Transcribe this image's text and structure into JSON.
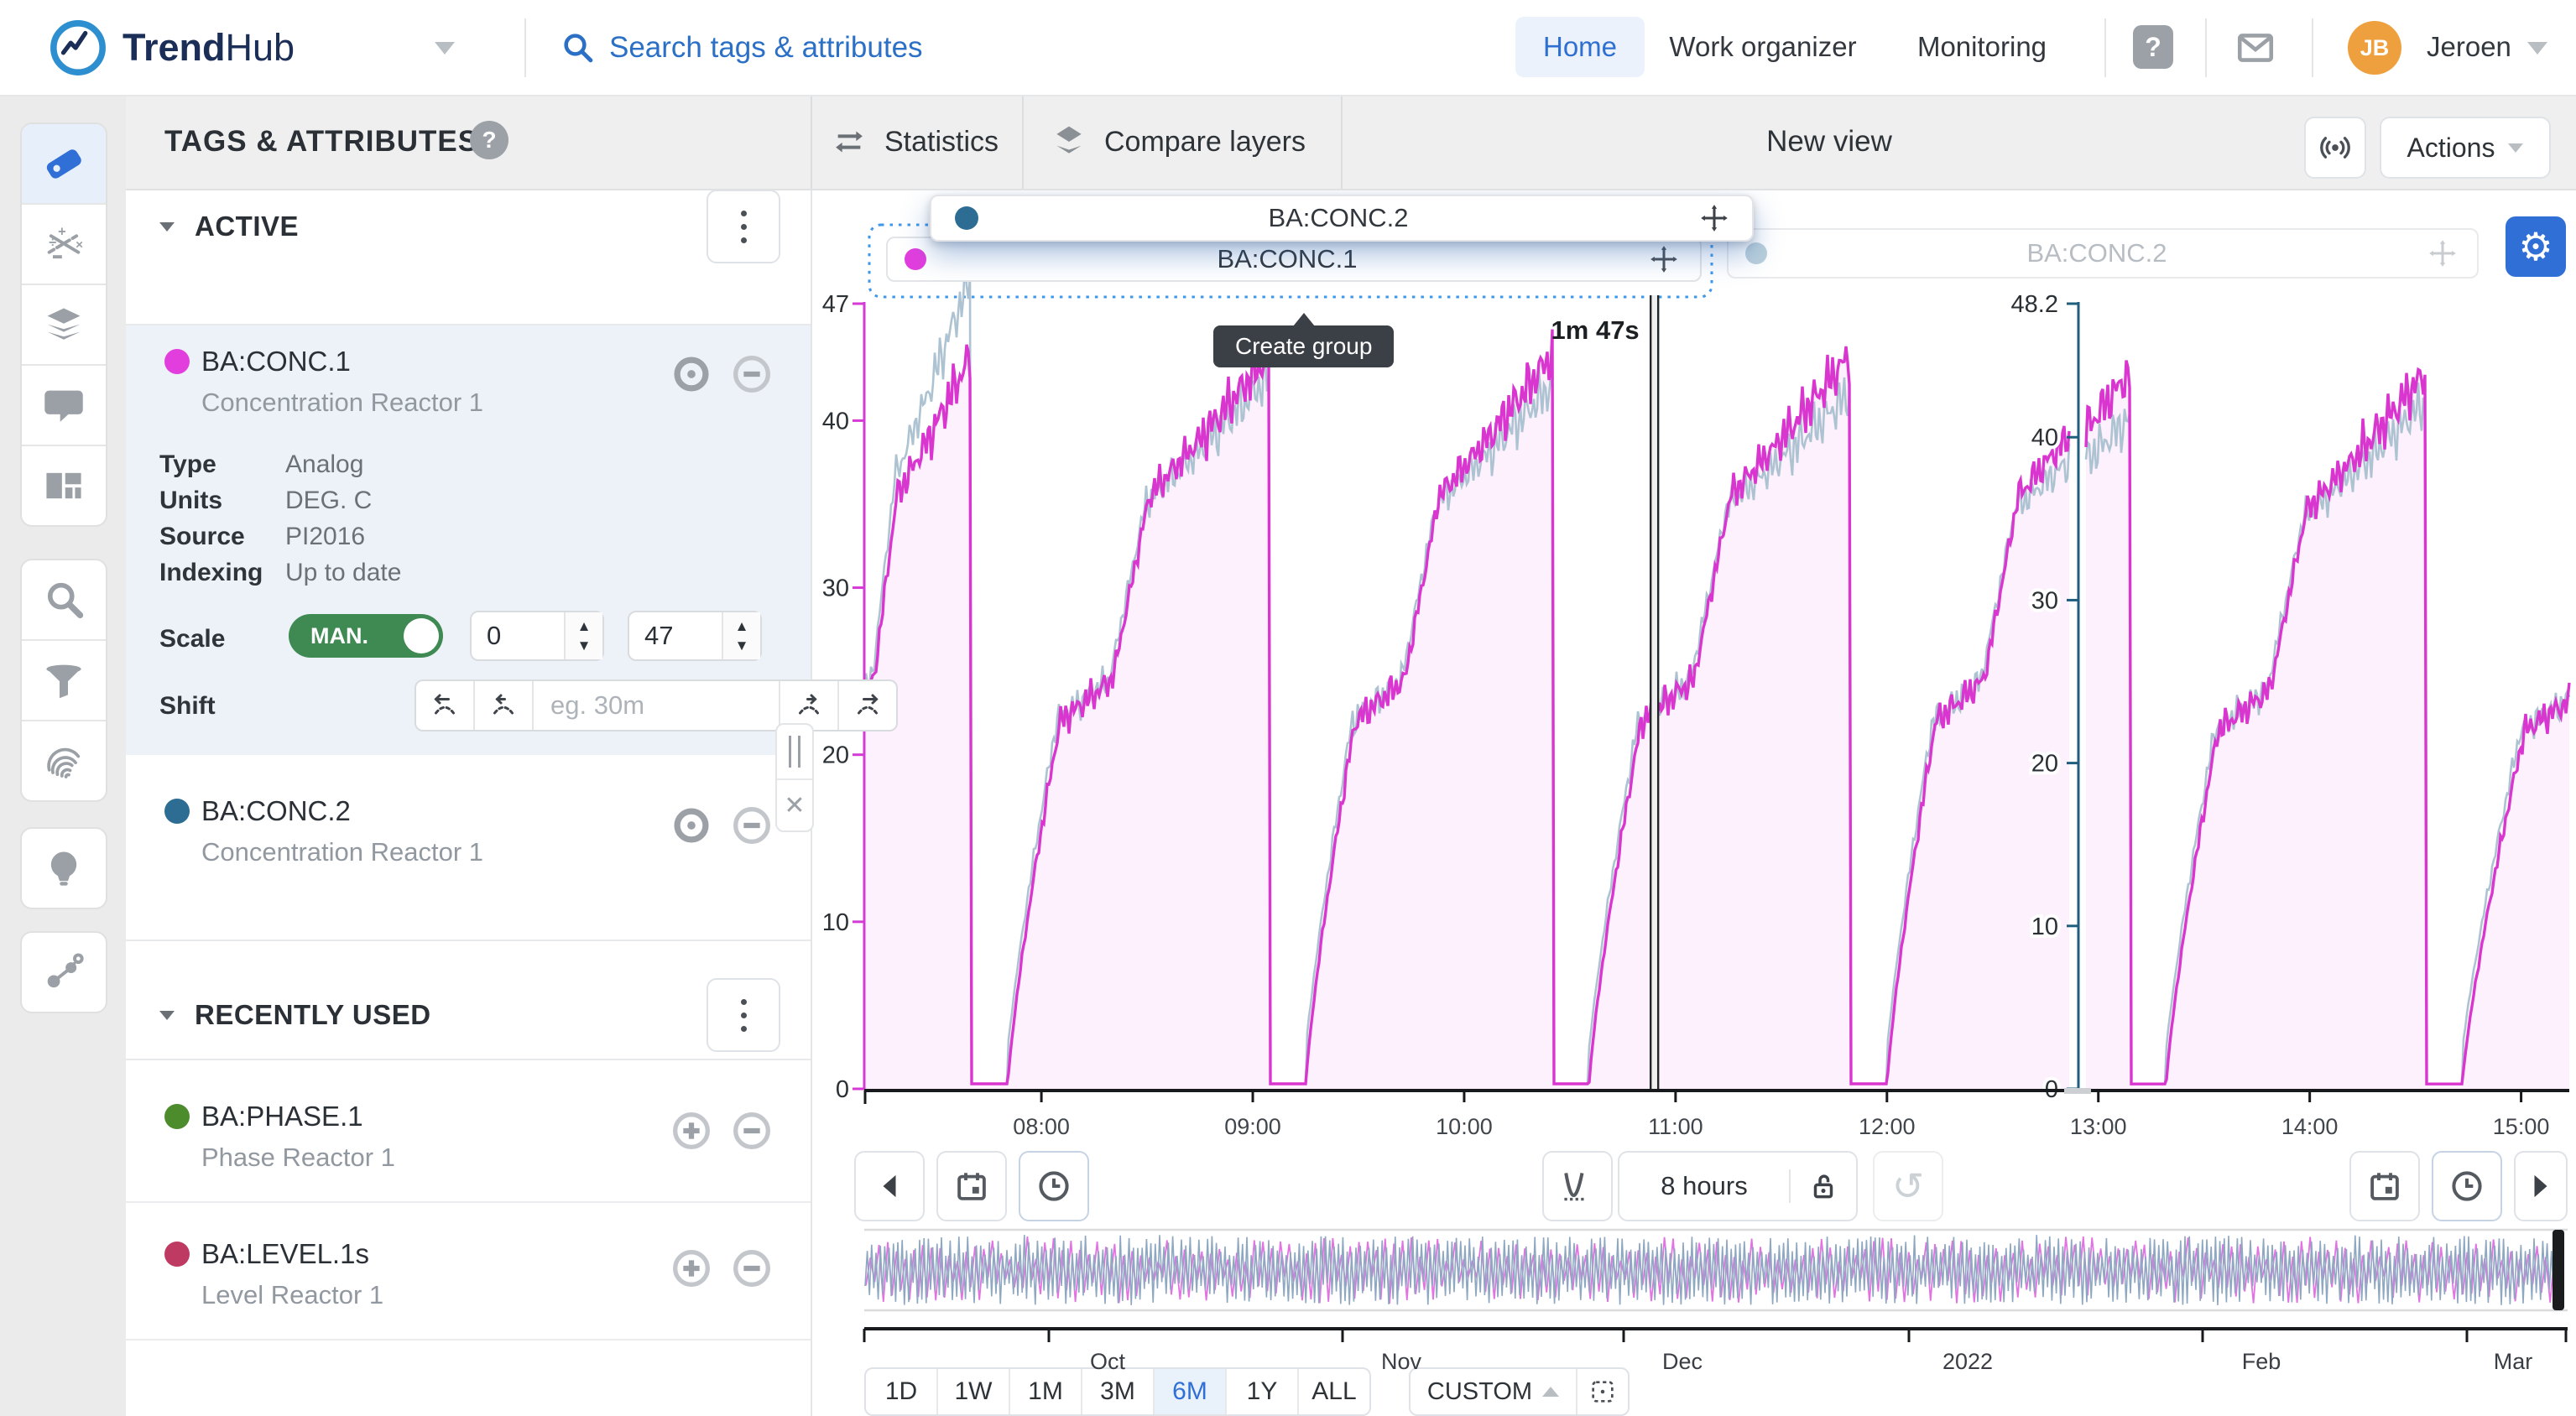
{
  "topbar": {
    "logo_primary": "Trend",
    "logo_secondary": "Hub",
    "search_placeholder": "Search tags & attributes",
    "nav": [
      "Home",
      "Work organizer",
      "Monitoring"
    ],
    "user_initials": "JB",
    "user_name": "Jeroen"
  },
  "rail": {
    "icons": [
      "tag",
      "formula",
      "layers",
      "comment",
      "dashboard",
      "search",
      "funnel",
      "fingerprint",
      "lightbulb",
      "context"
    ]
  },
  "sidebar": {
    "title": "TAGS & ATTRIBUTES",
    "active_section": "ACTIVE",
    "recent_section": "RECENTLY USED",
    "tags": [
      {
        "name": "BA:CONC.1",
        "desc": "Concentration Reactor 1",
        "color": "#e23ede"
      },
      {
        "name": "BA:CONC.2",
        "desc": "Concentration Reactor 1",
        "color": "#2d6d93"
      },
      {
        "name": "BA:PHASE.1",
        "desc": "Phase Reactor 1",
        "color": "#4c8c2d"
      },
      {
        "name": "BA:LEVEL.1s",
        "desc": "Level Reactor 1",
        "color": "#bf3a63"
      }
    ],
    "details": {
      "rows": [
        {
          "label": "Type",
          "value": "Analog"
        },
        {
          "label": "Units",
          "value": "DEG. C"
        },
        {
          "label": "Source",
          "value": "PI2016"
        },
        {
          "label": "Indexing",
          "value": "Up to date"
        }
      ],
      "scale_label": "Scale",
      "scale_toggle": "MAN.",
      "scale_min": "0",
      "scale_max": "47",
      "shift_label": "Shift",
      "shift_placeholder": "eg. 30m"
    }
  },
  "toolbar": {
    "statistics": "Statistics",
    "compare_layers": "Compare layers",
    "view_title": "New view",
    "actions": "Actions"
  },
  "chart_overlays": {
    "drag_card": "BA:CONC.2",
    "panel1_header": "BA:CONC.1",
    "panel2_header": "BA:CONC.2",
    "tooltip": "Create group"
  },
  "controls": {
    "duration": "8 hours"
  },
  "zoombar": {
    "ranges": [
      "1D",
      "1W",
      "1M",
      "3M",
      "6M",
      "1Y",
      "ALL"
    ],
    "active": "6M",
    "custom_label": "CUSTOM"
  },
  "chart_data": {
    "type": "line",
    "x_axis": {
      "start_hour": 7.17,
      "end_hour": 15.22,
      "ticks": [
        {
          "hour": 8,
          "label": "08:00"
        },
        {
          "hour": 9,
          "label": "09:00"
        },
        {
          "hour": 10,
          "label": "10:00"
        },
        {
          "hour": 11,
          "label": "11:00"
        },
        {
          "hour": 12,
          "label": "12:00"
        },
        {
          "hour": 13,
          "label": "13:00"
        },
        {
          "hour": 14,
          "label": "14:00"
        },
        {
          "hour": 15,
          "label": "15:00"
        }
      ]
    },
    "panels": [
      {
        "name": "BA:CONC.1",
        "y_max": 47,
        "axis_color": "#d43ad4",
        "tick_values": [
          47,
          40,
          30,
          20,
          10,
          0
        ],
        "tick_labels": [
          "47",
          "40",
          "30",
          "20",
          "10",
          "0"
        ]
      },
      {
        "name": "BA:CONC.2",
        "y_max": 48.2,
        "axis_color": "#1f5f7d",
        "tick_values": [
          48.2,
          40,
          30,
          20,
          10,
          0
        ],
        "tick_labels": [
          "48.2",
          "40",
          "30",
          "20",
          "10",
          "0"
        ]
      }
    ],
    "series": [
      {
        "name": "BA:CONC.1",
        "color": "#d936d0",
        "fill": "rgba(217,54,208,0.07)"
      },
      {
        "name": "BA:CONC.2",
        "color": "#aec3d2",
        "fill": "none"
      }
    ],
    "cycles": {
      "list": [
        {
          "start": 6.9,
          "drop": 7.67
        },
        {
          "start": 7.84,
          "drop": 9.08
        },
        {
          "start": 9.25,
          "drop": 10.42
        },
        {
          "start": 10.59,
          "drop": 11.83
        },
        {
          "start": 12.0,
          "drop": 13.15
        },
        {
          "start": 13.32,
          "drop": 14.55
        },
        {
          "start": 14.72,
          "drop": 16.2
        }
      ],
      "gray_top_delta": [
        4.5,
        -1.5,
        -2,
        -2.5,
        -3,
        -2,
        -2
      ],
      "peak": 45,
      "min": 0
    },
    "cursor": {
      "hour": 10.9,
      "label": "1m 47s"
    },
    "overview": {
      "labels": [
        "Oct",
        "Nov",
        "Dec",
        "2022",
        "Feb",
        "Mar"
      ],
      "series_colors": [
        "#8fa8c2",
        "#e273e2"
      ]
    }
  }
}
